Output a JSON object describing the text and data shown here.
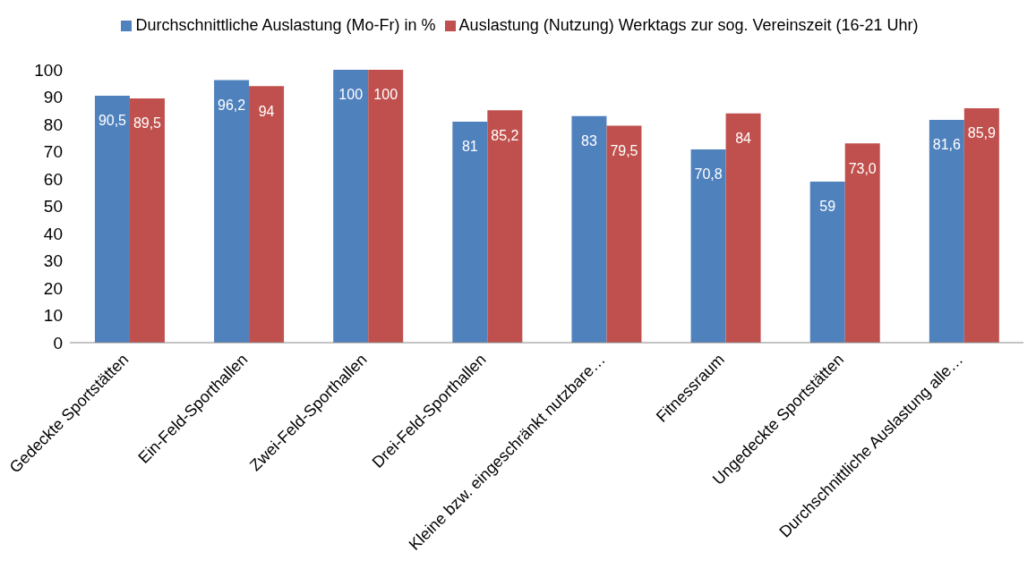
{
  "chart_data": {
    "type": "bar",
    "categories": [
      "Gedeckte Sportstätten",
      "Ein-Feld-Sporthallen",
      "Zwei-Feld-Sporthallen",
      "Drei-Feld-Sporthallen",
      "Kleine bzw. eingeschränkt nutzbare…",
      "Fitnessraum",
      "Ungedeckte Sportstätten",
      "Durchschnittliche Auslastung alle…"
    ],
    "series": [
      {
        "name": "Durchschnittliche Auslastung (Mo-Fr) in %",
        "color": "#4f81bd",
        "values": [
          90.5,
          96.2,
          100,
          81,
          83,
          70.8,
          59,
          81.6
        ],
        "value_labels": [
          "90,5",
          "96,2",
          "100",
          "81",
          "83",
          "70,8",
          "59",
          "81,6"
        ]
      },
      {
        "name": "Auslastung (Nutzung) Werktags zur sog. Vereinszeit (16-21 Uhr)",
        "color": "#c0504d",
        "values": [
          89.5,
          94,
          100,
          85.2,
          79.5,
          84,
          73.0,
          85.9
        ],
        "value_labels": [
          "89,5",
          "94",
          "100",
          "85,2",
          "79,5",
          "84",
          "73,0",
          "85,9"
        ]
      }
    ],
    "ylim": [
      0,
      100
    ],
    "yticks": [
      0,
      10,
      20,
      30,
      40,
      50,
      60,
      70,
      80,
      90,
      100
    ],
    "grid": false,
    "legend": "top"
  }
}
